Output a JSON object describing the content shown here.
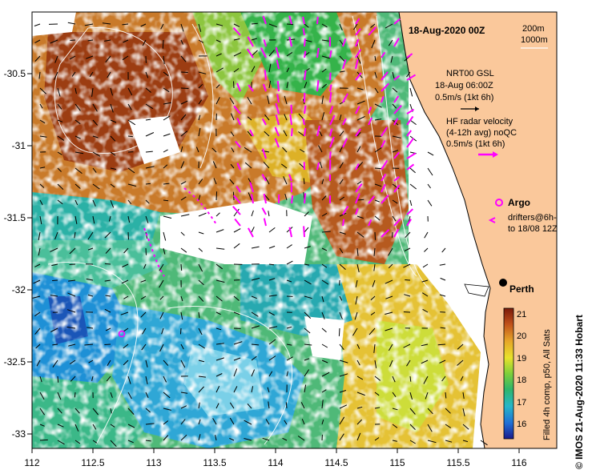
{
  "map": {
    "title": "18-Aug-2020 00Z",
    "depth_contours": [
      "200m",
      "1000m"
    ],
    "model_label": [
      "NRT00 GSL",
      "18-Aug 06:00Z",
      "0.5m/s (1kt 6h)"
    ],
    "radar_label": [
      "HF radar velocity",
      "(4-12h avg) noQC",
      "0.5m/s (1kt 6h)"
    ],
    "argo_label": "Argo",
    "drifter_label": [
      "drifters@6h-",
      "to 18/08 12Z"
    ],
    "city": "Perth",
    "colorbar": {
      "ticks": [
        "21",
        "20",
        "19",
        "18",
        "17",
        "16"
      ],
      "caption": "Filled 4h comp, p50, All Sats"
    },
    "credit": "© IMOS 21-Aug-2020 11:33 Hobart",
    "x_ticks": [
      "112",
      "112.5",
      "113",
      "113.5",
      "114",
      "114.5",
      "115",
      "115.5",
      "116"
    ],
    "y_ticks": [
      "-30.5",
      "-31",
      "-31.5",
      "-32",
      "-32.5",
      "-33"
    ],
    "colors": {
      "land": "#fac89b",
      "radar_vectors": "#ff00ff",
      "argo": "#ff00ff",
      "city_marker": "#000000"
    }
  }
}
